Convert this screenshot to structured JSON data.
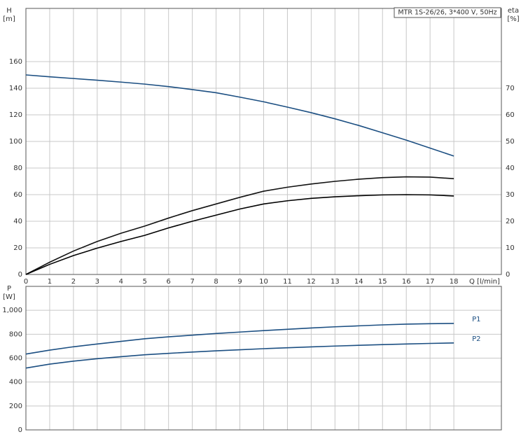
{
  "chart_data": [
    {
      "type": "line",
      "title": "MTR 1S-26/26, 3*400 V, 50Hz",
      "y_label": "H",
      "y_unit": "[m]",
      "y2_label": "eta",
      "y2_unit": "[%]",
      "x_label": "Q [l/min]",
      "x": [
        0,
        1,
        2,
        3,
        4,
        5,
        6,
        7,
        8,
        9,
        10,
        11,
        12,
        13,
        14,
        15,
        16,
        17,
        18
      ],
      "xlim": [
        0,
        20
      ],
      "xticks": [
        0,
        1,
        2,
        3,
        4,
        5,
        6,
        7,
        8,
        9,
        10,
        11,
        12,
        13,
        14,
        15,
        16,
        17,
        18
      ],
      "ylim": [
        0,
        200
      ],
      "yticks": [
        0,
        20,
        40,
        60,
        80,
        100,
        120,
        140,
        160
      ],
      "y2lim": [
        0,
        100
      ],
      "y2ticks": [
        0,
        10,
        20,
        30,
        40,
        50,
        60,
        70
      ],
      "grid": true,
      "show_x_tick_labels": true,
      "series": [
        {
          "color": "#1c4f82",
          "values": [
            150,
            148.6,
            147.3,
            146,
            144.6,
            143.1,
            141.2,
            139,
            136.6,
            133.3,
            129.8,
            125.8,
            121.6,
            117,
            112,
            106.5,
            101,
            95,
            89
          ]
        },
        {
          "color": "#111111",
          "axis": "y2",
          "values": [
            0,
            4.6,
            8.8,
            12.4,
            15.5,
            18.2,
            21.2,
            24,
            26.5,
            29,
            31.3,
            32.8,
            34,
            35,
            35.8,
            36.4,
            36.7,
            36.6,
            36
          ]
        },
        {
          "color": "#000000",
          "axis": "y2",
          "values": [
            0,
            3.8,
            7.1,
            9.9,
            12.4,
            14.7,
            17.5,
            20,
            22.3,
            24.6,
            26.5,
            27.7,
            28.6,
            29.2,
            29.6,
            29.9,
            30,
            29.9,
            29.5
          ]
        }
      ]
    },
    {
      "type": "line",
      "y_label": "P",
      "y_unit": "[W]",
      "x": [
        0,
        1,
        2,
        3,
        4,
        5,
        6,
        7,
        8,
        9,
        10,
        11,
        12,
        13,
        14,
        15,
        16,
        17,
        18
      ],
      "xlim": [
        0,
        20
      ],
      "xticks": [
        0,
        1,
        2,
        3,
        4,
        5,
        6,
        7,
        8,
        9,
        10,
        11,
        12,
        13,
        14,
        15,
        16,
        17,
        18
      ],
      "ylim": [
        0,
        1200
      ],
      "yticks": [
        0,
        200,
        400,
        600,
        800,
        {
          "value": 1000,
          "label": "1,000"
        }
      ],
      "grid": true,
      "show_x_tick_labels": false,
      "series": [
        {
          "name": "P1",
          "color": "#1c4f82",
          "values": [
            634,
            667,
            695,
            718,
            740,
            762,
            778,
            792,
            806,
            818,
            830,
            841,
            852,
            862,
            870,
            878,
            884,
            888,
            890
          ]
        },
        {
          "name": "P2",
          "color": "#1c4f82",
          "values": [
            517,
            550,
            575,
            595,
            612,
            628,
            640,
            651,
            661,
            670,
            679,
            687,
            694,
            701,
            707,
            713,
            718,
            723,
            727
          ]
        }
      ]
    }
  ]
}
